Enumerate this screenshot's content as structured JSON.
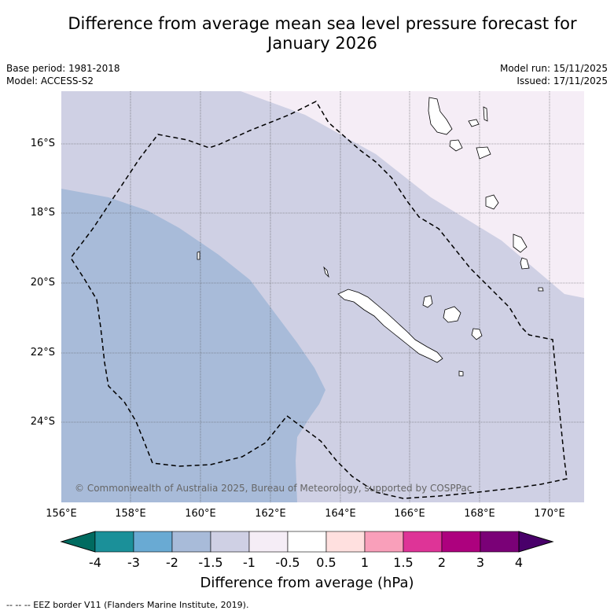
{
  "title": {
    "line1": "Difference from average mean sea level pressure forecast for",
    "line2": "January 2026"
  },
  "meta": {
    "base_period": "Base period: 1981-2018",
    "model": "Model: ACCESS-S2",
    "model_run": "Model run: 15/11/2025",
    "issued": "Issued: 17/11/2025"
  },
  "map": {
    "lat_labels": [
      "16°S",
      "18°S",
      "20°S",
      "22°S",
      "24°S"
    ],
    "lon_labels": [
      "156°E",
      "158°E",
      "160°E",
      "162°E",
      "164°E",
      "166°E",
      "168°E",
      "170°E"
    ],
    "copyright": "© Commonwealth of Australia 2025, Bureau of Meteorology, supported by COSPPac",
    "fill_colors": {
      "band_-2_-1.5": "#a8bbd9",
      "band_-1.5_-1": "#cfd0e4",
      "band_-1_-0.5": "#f5edf6"
    }
  },
  "colorbar": {
    "title": "Difference from average (hPa)",
    "tick_labels": [
      "-4",
      "-3",
      "-2",
      "-1.5",
      "-1",
      "-0.5",
      "0.5",
      "1",
      "1.5",
      "2",
      "3",
      "4"
    ],
    "colors": [
      "#1b9099",
      "#69aad3",
      "#a8bbd9",
      "#cfd0e4",
      "#f5edf6",
      "#ffffff",
      "#ffe0df",
      "#f99fba",
      "#de3497",
      "#ad017e",
      "#7a0177"
    ],
    "under_color": "#006b60",
    "over_color": "#49006a"
  },
  "footnote": "--  --  -- EEZ border V11 (Flanders Marine Institute, 2019)."
}
